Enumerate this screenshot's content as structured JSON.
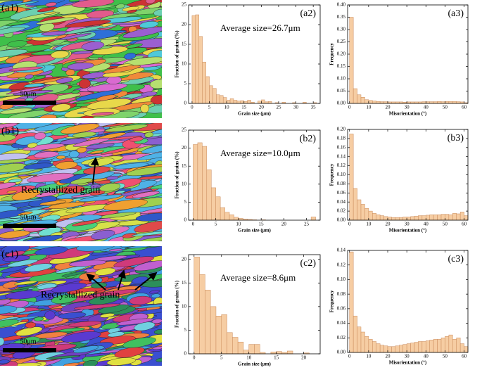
{
  "micrographs": [
    {
      "label": "(a1)",
      "scale_bar": "50μm"
    },
    {
      "label": "(b1)",
      "scale_bar": "50μm",
      "annotation": "Recrystallized grain"
    },
    {
      "label": "(c1)",
      "scale_bar": "50μm",
      "annotation": "Recrystallized grain"
    }
  ],
  "chart_data": [
    {
      "type": "histogram",
      "panel_label": "(a2)",
      "annotation": "Average size=26.7μm",
      "xlabel": "Grain size (μm)",
      "ylabel": "Fraction of grains (%)",
      "color": "#f6cda3",
      "edge_color": "#c98a5a",
      "bins": [
        0,
        1,
        2,
        3,
        4,
        5,
        6,
        7,
        8,
        9,
        10,
        11,
        12,
        13,
        14,
        15,
        16,
        17,
        18,
        19,
        20,
        21,
        22,
        23,
        24,
        25,
        26,
        27,
        28,
        29,
        30,
        31,
        32,
        33,
        34,
        35,
        36,
        37
      ],
      "values": [
        22.3,
        22.5,
        17,
        10.5,
        6.8,
        4.5,
        3.8,
        2.2,
        2,
        1.5,
        0.8,
        1.2,
        0.8,
        0.6,
        0.7,
        0.5,
        0.8,
        0.3,
        0,
        0.6,
        0.9,
        0.4,
        0.5,
        0,
        0.2,
        0,
        0.3,
        0,
        0,
        0.2,
        0,
        0,
        0.3,
        0,
        0,
        0.2,
        0
      ],
      "xlim": [
        -1,
        37
      ],
      "ylim": [
        0,
        25
      ],
      "xticks": [
        0,
        5,
        10,
        15,
        20,
        25,
        30,
        35
      ],
      "yticks": [
        0,
        5,
        10,
        15,
        20,
        25
      ]
    },
    {
      "type": "histogram",
      "panel_label": "(a3)",
      "xlabel": "Misorientation (°)",
      "ylabel": "Frequency",
      "color": "#f6cda3",
      "edge_color": "#c98a5a",
      "bins": [
        0,
        2,
        4,
        6,
        8,
        10,
        12,
        14,
        16,
        18,
        20,
        22,
        24,
        26,
        28,
        30,
        32,
        34,
        36,
        38,
        40,
        42,
        44,
        46,
        48,
        50,
        52,
        54,
        56,
        58,
        60,
        62
      ],
      "values": [
        0.35,
        0.06,
        0.035,
        0.025,
        0.015,
        0.012,
        0.01,
        0.008,
        0.007,
        0.007,
        0.006,
        0.006,
        0.006,
        0.006,
        0.005,
        0.006,
        0.006,
        0.006,
        0.006,
        0.007,
        0.007,
        0.007,
        0.007,
        0.008,
        0.007,
        0.008,
        0.008,
        0.008,
        0.007,
        0.006,
        0.003
      ],
      "xlim": [
        -1,
        62
      ],
      "ylim": [
        0,
        0.4
      ],
      "xticks": [
        0,
        10,
        20,
        30,
        40,
        50,
        60
      ],
      "yticks": [
        {
          "value": 0,
          "label": "0.00"
        },
        {
          "value": 0.05,
          "label": "0.05"
        },
        {
          "value": 0.1,
          "label": "0.10"
        },
        {
          "value": 0.15,
          "label": "0.15"
        },
        {
          "value": 0.2,
          "label": "0.20"
        },
        {
          "value": 0.25,
          "label": "0.25"
        },
        {
          "value": 0.3,
          "label": "0.30"
        },
        {
          "value": 0.35,
          "label": "0.35"
        },
        {
          "value": 0.4,
          "label": "0.40"
        }
      ]
    },
    {
      "type": "histogram",
      "panel_label": "(b2)",
      "annotation": "Average size=10.0μm",
      "xlabel": "Grain size (μm)",
      "ylabel": "Fraction of grains (%)",
      "color": "#f6cda3",
      "edge_color": "#c98a5a",
      "bins": [
        0,
        1,
        2,
        3,
        4,
        5,
        6,
        7,
        8,
        9,
        10,
        11,
        12,
        13,
        14,
        15,
        16,
        17,
        18,
        19,
        20,
        21,
        22,
        23,
        24,
        25,
        26,
        27
      ],
      "values": [
        21,
        21.5,
        20.5,
        14,
        9,
        6.5,
        3.5,
        2.2,
        1.5,
        0.8,
        0.5,
        0.3,
        0.2,
        0.1,
        0,
        0.1,
        0,
        0,
        0,
        0,
        0,
        0,
        0,
        0,
        0,
        0,
        0.9
      ],
      "xlim": [
        -1,
        28
      ],
      "ylim": [
        0,
        25
      ],
      "xticks": [
        0,
        5,
        10,
        15,
        20,
        25
      ],
      "yticks": [
        0,
        5,
        10,
        15,
        20,
        25
      ]
    },
    {
      "type": "histogram",
      "panel_label": "(b3)",
      "xlabel": "Misorientation (°)",
      "ylabel": "Frequency",
      "color": "#f6cda3",
      "edge_color": "#c98a5a",
      "bins": [
        0,
        2,
        4,
        6,
        8,
        10,
        12,
        14,
        16,
        18,
        20,
        22,
        24,
        26,
        28,
        30,
        32,
        34,
        36,
        38,
        40,
        42,
        44,
        46,
        48,
        50,
        52,
        54,
        56,
        58,
        60,
        62
      ],
      "values": [
        0.19,
        0.07,
        0.045,
        0.035,
        0.026,
        0.02,
        0.015,
        0.012,
        0.01,
        0.008,
        0.007,
        0.006,
        0.006,
        0.006,
        0.007,
        0.007,
        0.008,
        0.009,
        0.01,
        0.01,
        0.011,
        0.012,
        0.012,
        0.012,
        0.013,
        0.013,
        0.012,
        0.015,
        0.014,
        0.018,
        0.01
      ],
      "xlim": [
        -1,
        62
      ],
      "ylim": [
        0,
        0.2
      ],
      "xticks": [
        0,
        10,
        20,
        30,
        40,
        50,
        60
      ],
      "yticks": [
        {
          "value": 0,
          "label": "0.00"
        },
        {
          "value": 0.02,
          "label": "0.02"
        },
        {
          "value": 0.04,
          "label": "0.04"
        },
        {
          "value": 0.06,
          "label": "0.06"
        },
        {
          "value": 0.08,
          "label": "0.08"
        },
        {
          "value": 0.1,
          "label": "0.10"
        },
        {
          "value": 0.12,
          "label": "0.12"
        },
        {
          "value": 0.14,
          "label": "0.14"
        },
        {
          "value": 0.16,
          "label": "0.16"
        },
        {
          "value": 0.18,
          "label": "0.18"
        },
        {
          "value": 0.2,
          "label": "0.20"
        }
      ]
    },
    {
      "type": "histogram",
      "panel_label": "(c2)",
      "annotation": "Average size=8.6μm",
      "xlabel": "Grain size (μm)",
      "ylabel": "Fraction of grains (%)",
      "color": "#f6cda3",
      "edge_color": "#c98a5a",
      "bins": [
        0,
        1,
        2,
        3,
        4,
        5,
        6,
        7,
        8,
        9,
        10,
        11,
        12,
        13,
        14,
        15,
        16,
        17,
        18,
        19,
        20,
        21,
        22
      ],
      "values": [
        20.5,
        16.8,
        13.5,
        10,
        8,
        8.3,
        4.5,
        3.5,
        2.5,
        0.8,
        2,
        2,
        0.3,
        0,
        0.4,
        0.5,
        0.3,
        0.6,
        0,
        0,
        0.2,
        0
      ],
      "xlim": [
        -1,
        23
      ],
      "ylim": [
        0,
        21
      ],
      "xticks": [
        0,
        5,
        10,
        15,
        20
      ],
      "yticks": [
        0,
        5,
        10,
        15,
        20
      ]
    },
    {
      "type": "histogram",
      "panel_label": "(c3)",
      "xlabel": "Misorientation (°)",
      "ylabel": "Frequency",
      "color": "#f6cda3",
      "edge_color": "#c98a5a",
      "bins": [
        0,
        2,
        4,
        6,
        8,
        10,
        12,
        14,
        16,
        18,
        20,
        22,
        24,
        26,
        28,
        30,
        32,
        34,
        36,
        38,
        40,
        42,
        44,
        46,
        48,
        50,
        52,
        54,
        56,
        58,
        60,
        62
      ],
      "values": [
        0.138,
        0.05,
        0.035,
        0.028,
        0.022,
        0.018,
        0.015,
        0.012,
        0.01,
        0.009,
        0.008,
        0.008,
        0.009,
        0.01,
        0.011,
        0.012,
        0.013,
        0.014,
        0.015,
        0.015,
        0.016,
        0.017,
        0.018,
        0.018,
        0.02,
        0.022,
        0.024,
        0.018,
        0.02,
        0.012,
        0.008
      ],
      "xlim": [
        -1,
        62
      ],
      "ylim": [
        0,
        0.14
      ],
      "xticks": [
        0,
        10,
        20,
        30,
        40,
        50,
        60
      ],
      "yticks": [
        {
          "value": 0,
          "label": "0.00"
        },
        {
          "value": 0.02,
          "label": "0.02"
        },
        {
          "value": 0.04,
          "label": "0.04"
        },
        {
          "value": 0.06,
          "label": "0.06"
        },
        {
          "value": 0.08,
          "label": "0.08"
        },
        {
          "value": 0.1,
          "label": "0.10"
        },
        {
          "value": 0.12,
          "label": "0.12"
        },
        {
          "value": 0.14,
          "label": "0.14"
        }
      ]
    }
  ]
}
